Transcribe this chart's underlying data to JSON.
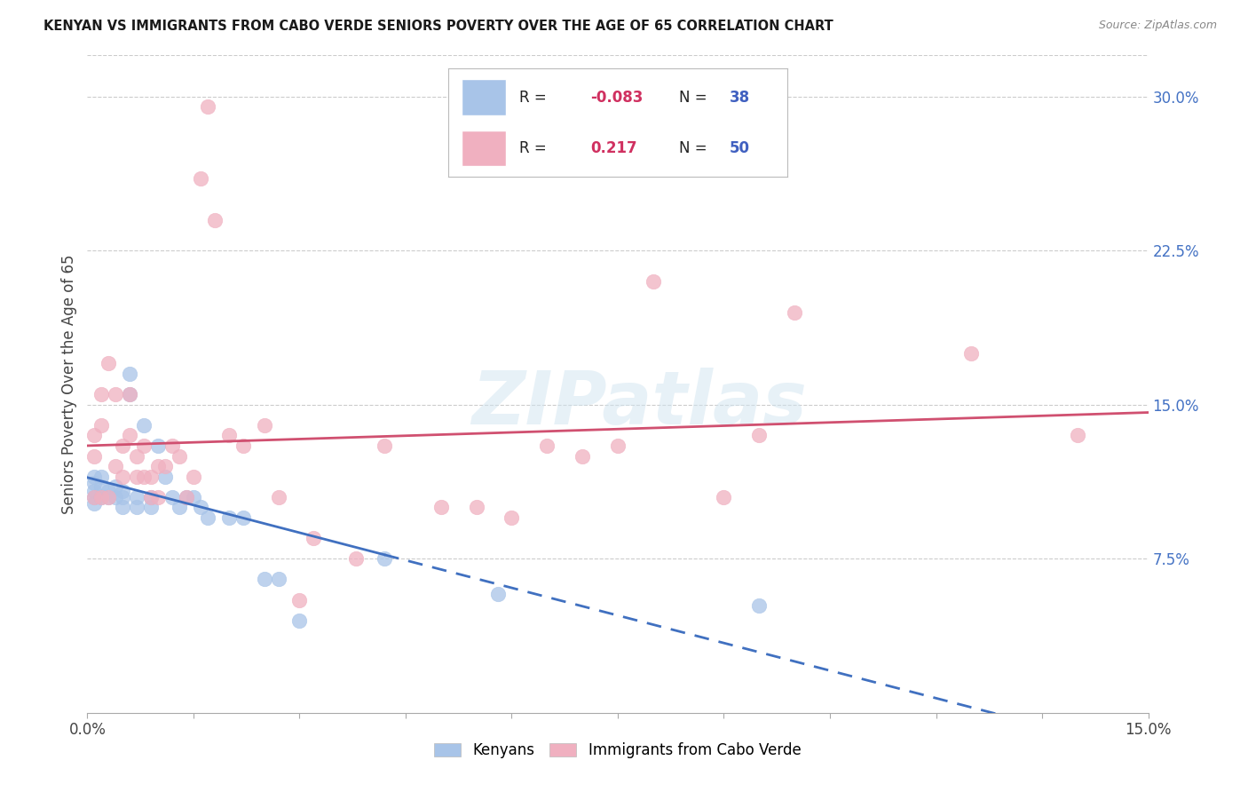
{
  "title": "KENYAN VS IMMIGRANTS FROM CABO VERDE SENIORS POVERTY OVER THE AGE OF 65 CORRELATION CHART",
  "source": "Source: ZipAtlas.com",
  "ylabel": "Seniors Poverty Over the Age of 65",
  "x_min": 0.0,
  "x_max": 0.15,
  "y_min": 0.0,
  "y_max": 0.32,
  "y_ticks_right": [
    0.075,
    0.15,
    0.225,
    0.3
  ],
  "y_tick_labels_right": [
    "7.5%",
    "15.0%",
    "22.5%",
    "30.0%"
  ],
  "legend_labels": [
    "Kenyans",
    "Immigrants from Cabo Verde"
  ],
  "blue_color": "#a8c4e8",
  "pink_color": "#f0b0c0",
  "blue_line_color": "#4070c0",
  "pink_line_color": "#d05070",
  "R_blue": "-0.083",
  "N_blue": "38",
  "R_pink": "0.217",
  "N_pink": "50",
  "watermark": "ZIPatlas",
  "blue_scatter_x": [
    0.001,
    0.001,
    0.001,
    0.001,
    0.001,
    0.002,
    0.002,
    0.002,
    0.003,
    0.003,
    0.004,
    0.004,
    0.005,
    0.005,
    0.005,
    0.006,
    0.006,
    0.007,
    0.007,
    0.008,
    0.009,
    0.009,
    0.01,
    0.011,
    0.012,
    0.013,
    0.014,
    0.015,
    0.016,
    0.017,
    0.02,
    0.022,
    0.025,
    0.027,
    0.03,
    0.042,
    0.058,
    0.095
  ],
  "blue_scatter_y": [
    0.115,
    0.112,
    0.108,
    0.105,
    0.102,
    0.115,
    0.11,
    0.105,
    0.108,
    0.105,
    0.11,
    0.105,
    0.108,
    0.105,
    0.1,
    0.165,
    0.155,
    0.105,
    0.1,
    0.14,
    0.105,
    0.1,
    0.13,
    0.115,
    0.105,
    0.1,
    0.105,
    0.105,
    0.1,
    0.095,
    0.095,
    0.095,
    0.065,
    0.065,
    0.045,
    0.075,
    0.058,
    0.052
  ],
  "pink_scatter_x": [
    0.001,
    0.001,
    0.001,
    0.002,
    0.002,
    0.002,
    0.003,
    0.003,
    0.004,
    0.004,
    0.005,
    0.005,
    0.006,
    0.006,
    0.007,
    0.007,
    0.008,
    0.008,
    0.009,
    0.009,
    0.01,
    0.01,
    0.011,
    0.012,
    0.013,
    0.014,
    0.015,
    0.016,
    0.017,
    0.018,
    0.02,
    0.022,
    0.025,
    0.027,
    0.03,
    0.032,
    0.038,
    0.042,
    0.05,
    0.055,
    0.06,
    0.065,
    0.07,
    0.075,
    0.08,
    0.09,
    0.095,
    0.1,
    0.125,
    0.14
  ],
  "pink_scatter_y": [
    0.135,
    0.125,
    0.105,
    0.155,
    0.14,
    0.105,
    0.17,
    0.105,
    0.155,
    0.12,
    0.13,
    0.115,
    0.155,
    0.135,
    0.125,
    0.115,
    0.13,
    0.115,
    0.115,
    0.105,
    0.12,
    0.105,
    0.12,
    0.13,
    0.125,
    0.105,
    0.115,
    0.26,
    0.295,
    0.24,
    0.135,
    0.13,
    0.14,
    0.105,
    0.055,
    0.085,
    0.075,
    0.13,
    0.1,
    0.1,
    0.095,
    0.13,
    0.125,
    0.13,
    0.21,
    0.105,
    0.135,
    0.195,
    0.175,
    0.135
  ]
}
